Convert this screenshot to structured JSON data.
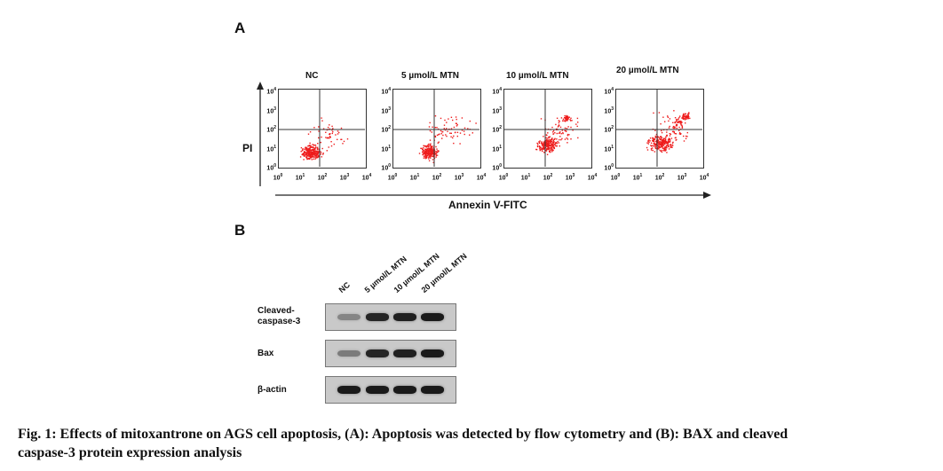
{
  "panel_a": {
    "letter": "A",
    "y_axis_title": "PI",
    "x_axis_title": "Annexin V-FITC",
    "conditions": [
      "NC",
      "5 µmol/L MTN",
      "10 µmol/L MTN",
      "20 µmol/L MTN"
    ],
    "ticks": [
      "10",
      "10",
      "10",
      "10",
      "10"
    ],
    "tick_exponents": [
      "0",
      "1",
      "2",
      "3",
      "4"
    ],
    "dot_color": "#ee1c1c"
  },
  "panel_b": {
    "letter": "B",
    "lanes": [
      "NC",
      "5 µmol/L MTN",
      "10 µmol/L MTN",
      "20 µmol/L MTN"
    ],
    "rows": [
      {
        "label_line1": "Cleaved-",
        "label_line2": "caspase-3",
        "band_intensity": [
          0.45,
          0.9,
          0.92,
          0.95
        ]
      },
      {
        "label_line1": "Bax",
        "label_line2": "",
        "band_intensity": [
          0.5,
          0.9,
          0.92,
          0.95
        ]
      },
      {
        "label_line1": "β-actin",
        "label_line2": "",
        "band_intensity": [
          0.95,
          0.95,
          0.95,
          0.95
        ]
      }
    ]
  },
  "caption": {
    "line1": "Fig. 1: Effects of mitoxantrone on AGS cell apoptosis, (A): Apoptosis was detected by flow cytometry and (B): BAX and cleaved",
    "line2": "caspase-3 protein expression analysis"
  }
}
